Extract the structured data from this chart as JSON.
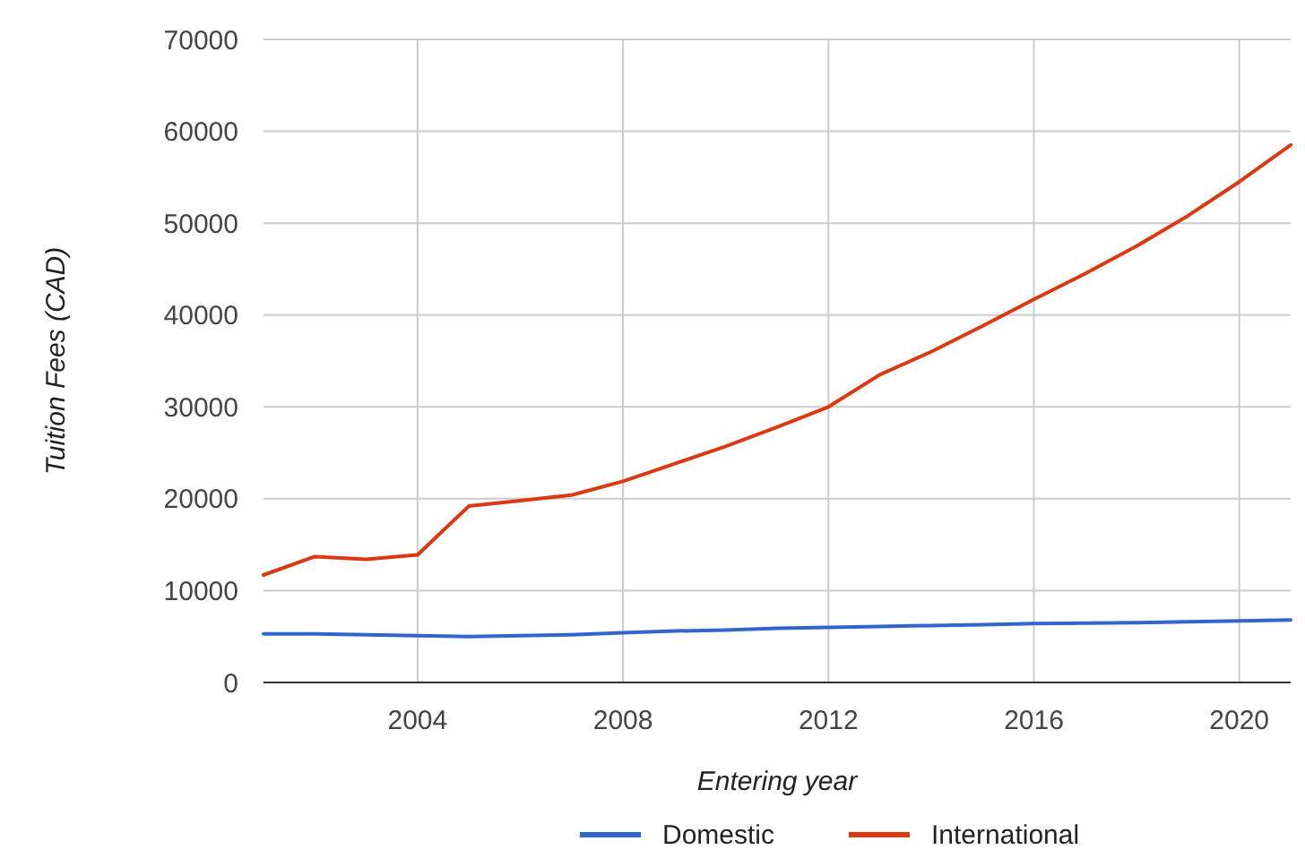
{
  "chart_data": {
    "type": "line",
    "xlabel": "Entering year",
    "ylabel": "Tuition Fees (CAD)",
    "x": [
      2001,
      2002,
      2003,
      2004,
      2005,
      2006,
      2007,
      2008,
      2009,
      2010,
      2011,
      2012,
      2013,
      2014,
      2015,
      2016,
      2017,
      2018,
      2019,
      2020,
      2021
    ],
    "series": [
      {
        "name": "Domestic",
        "color": "#3366cc",
        "values": [
          5300,
          5300,
          5200,
          5100,
          5000,
          5100,
          5200,
          5400,
          5600,
          5700,
          5900,
          6000,
          6100,
          6200,
          6300,
          6400,
          6450,
          6500,
          6600,
          6700,
          6800
        ]
      },
      {
        "name": "International",
        "color": "#dc3912",
        "values": [
          11700,
          13700,
          13400,
          13900,
          19200,
          19800,
          20400,
          21900,
          23800,
          25700,
          27800,
          30000,
          33500,
          36000,
          38800,
          41700,
          44500,
          47500,
          50800,
          54500,
          58500
        ]
      }
    ],
    "xlim": [
      2001,
      2021
    ],
    "xticks": [
      2004,
      2008,
      2012,
      2016,
      2020
    ],
    "ylim": [
      0,
      70000
    ],
    "yticks": [
      0,
      10000,
      20000,
      30000,
      40000,
      50000,
      60000,
      70000
    ],
    "grid": true,
    "legend": "bottom",
    "marker": "none",
    "line_style": "solid"
  }
}
